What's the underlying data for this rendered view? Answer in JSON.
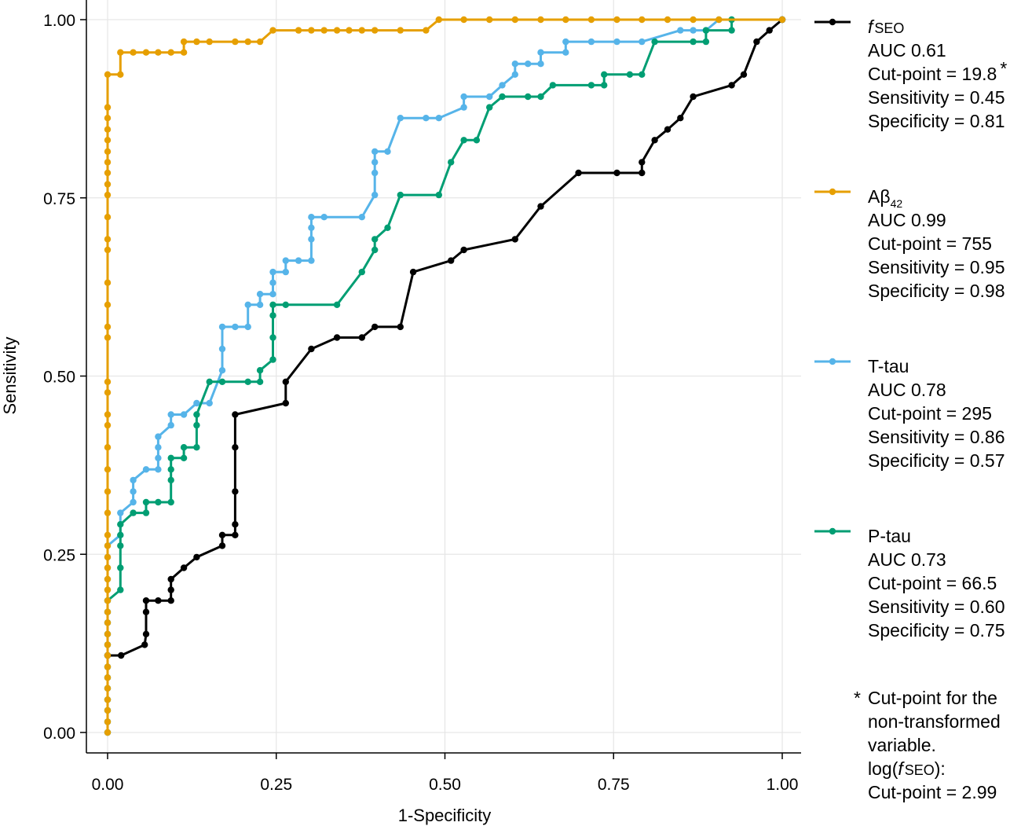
{
  "chart_data": {
    "type": "line",
    "title": "",
    "xlabel": "1-Specificity",
    "ylabel": "Sensitivity",
    "xlim": [
      0,
      1
    ],
    "ylim": [
      0,
      1
    ],
    "grid": true,
    "legend_position": "right",
    "x_ticks": [
      "0.00",
      "0.25",
      "0.50",
      "0.75",
      "1.00"
    ],
    "y_ticks": [
      "0.00",
      "0.25",
      "0.50",
      "0.75",
      "1.00"
    ],
    "series": [
      {
        "name": "fSEO",
        "name_italic": "f",
        "name_rest": "SEO",
        "color": "#000000",
        "legend_lines": [
          "AUC 0.61",
          "Cut-point = 19.8",
          "Sensitivity  = 0.45",
          "Specificity = 0.81"
        ],
        "cut_point_marker": "*",
        "points": [
          [
            0,
            0.108
          ],
          [
            0.02,
            0.108
          ],
          [
            0.055,
            0.123
          ],
          [
            0.057,
            0.138
          ],
          [
            0.057,
            0.169
          ],
          [
            0.057,
            0.185
          ],
          [
            0.075,
            0.185
          ],
          [
            0.094,
            0.185
          ],
          [
            0.094,
            0.2
          ],
          [
            0.094,
            0.215
          ],
          [
            0.113,
            0.231
          ],
          [
            0.132,
            0.246
          ],
          [
            0.17,
            0.262
          ],
          [
            0.17,
            0.277
          ],
          [
            0.189,
            0.277
          ],
          [
            0.189,
            0.292
          ],
          [
            0.189,
            0.338
          ],
          [
            0.189,
            0.4
          ],
          [
            0.189,
            0.446
          ],
          [
            0.264,
            0.462
          ],
          [
            0.264,
            0.492
          ],
          [
            0.302,
            0.538
          ],
          [
            0.34,
            0.554
          ],
          [
            0.377,
            0.554
          ],
          [
            0.396,
            0.569
          ],
          [
            0.434,
            0.569
          ],
          [
            0.453,
            0.646
          ],
          [
            0.509,
            0.662
          ],
          [
            0.528,
            0.677
          ],
          [
            0.604,
            0.692
          ],
          [
            0.642,
            0.738
          ],
          [
            0.698,
            0.785
          ],
          [
            0.755,
            0.785
          ],
          [
            0.792,
            0.785
          ],
          [
            0.792,
            0.8
          ],
          [
            0.811,
            0.831
          ],
          [
            0.83,
            0.846
          ],
          [
            0.849,
            0.862
          ],
          [
            0.868,
            0.892
          ],
          [
            0.925,
            0.908
          ],
          [
            0.943,
            0.923
          ],
          [
            0.962,
            0.969
          ],
          [
            0.981,
            0.985
          ],
          [
            1,
            1
          ]
        ]
      },
      {
        "name": "Aβ42",
        "name_main": "Aβ",
        "name_sub": "42",
        "color": "#E69F00",
        "legend_lines": [
          "AUC 0.99",
          "Cut-point = 755",
          "Sensitivity = 0.95",
          "Specificity = 0.98"
        ],
        "points": [
          [
            0,
            0
          ],
          [
            0,
            0.015
          ],
          [
            0,
            0.031
          ],
          [
            0,
            0.046
          ],
          [
            0,
            0.062
          ],
          [
            0,
            0.077
          ],
          [
            0,
            0.092
          ],
          [
            0,
            0.108
          ],
          [
            0,
            0.123
          ],
          [
            0,
            0.138
          ],
          [
            0,
            0.154
          ],
          [
            0,
            0.169
          ],
          [
            0,
            0.185
          ],
          [
            0,
            0.2
          ],
          [
            0,
            0.215
          ],
          [
            0,
            0.231
          ],
          [
            0,
            0.246
          ],
          [
            0,
            0.262
          ],
          [
            0,
            0.277
          ],
          [
            0,
            0.308
          ],
          [
            0,
            0.338
          ],
          [
            0,
            0.369
          ],
          [
            0,
            0.4
          ],
          [
            0,
            0.431
          ],
          [
            0,
            0.446
          ],
          [
            0,
            0.477
          ],
          [
            0,
            0.492
          ],
          [
            0,
            0.554
          ],
          [
            0,
            0.569
          ],
          [
            0,
            0.6
          ],
          [
            0,
            0.631
          ],
          [
            0,
            0.677
          ],
          [
            0,
            0.692
          ],
          [
            0,
            0.723
          ],
          [
            0,
            0.754
          ],
          [
            0,
            0.769
          ],
          [
            0,
            0.785
          ],
          [
            0,
            0.8
          ],
          [
            0,
            0.815
          ],
          [
            0,
            0.831
          ],
          [
            0,
            0.846
          ],
          [
            0,
            0.862
          ],
          [
            0,
            0.877
          ],
          [
            0,
            0.923
          ],
          [
            0.019,
            0.923
          ],
          [
            0.019,
            0.954
          ],
          [
            0.038,
            0.954
          ],
          [
            0.057,
            0.954
          ],
          [
            0.075,
            0.954
          ],
          [
            0.094,
            0.954
          ],
          [
            0.113,
            0.954
          ],
          [
            0.113,
            0.969
          ],
          [
            0.132,
            0.969
          ],
          [
            0.151,
            0.969
          ],
          [
            0.189,
            0.969
          ],
          [
            0.208,
            0.969
          ],
          [
            0.226,
            0.969
          ],
          [
            0.245,
            0.985
          ],
          [
            0.283,
            0.985
          ],
          [
            0.302,
            0.985
          ],
          [
            0.321,
            0.985
          ],
          [
            0.34,
            0.985
          ],
          [
            0.358,
            0.985
          ],
          [
            0.377,
            0.985
          ],
          [
            0.396,
            0.985
          ],
          [
            0.434,
            0.985
          ],
          [
            0.472,
            0.985
          ],
          [
            0.491,
            1
          ],
          [
            0.528,
            1
          ],
          [
            0.566,
            1
          ],
          [
            0.604,
            1
          ],
          [
            0.642,
            1
          ],
          [
            0.679,
            1
          ],
          [
            0.717,
            1
          ],
          [
            0.755,
            1
          ],
          [
            0.792,
            1
          ],
          [
            0.83,
            1
          ],
          [
            0.868,
            1
          ],
          [
            0.906,
            1
          ],
          [
            1,
            1
          ]
        ]
      },
      {
        "name": "T-tau",
        "color": "#56B4E9",
        "legend_lines": [
          "AUC 0.78",
          "Cut-point = 295",
          "Sensitivity = 0.86",
          "Specificity = 0.57"
        ],
        "points": [
          [
            0,
            0
          ],
          [
            0,
            0.015
          ],
          [
            0,
            0.031
          ],
          [
            0,
            0.046
          ],
          [
            0,
            0.062
          ],
          [
            0,
            0.077
          ],
          [
            0,
            0.092
          ],
          [
            0,
            0.108
          ],
          [
            0,
            0.123
          ],
          [
            0,
            0.138
          ],
          [
            0,
            0.154
          ],
          [
            0,
            0.169
          ],
          [
            0,
            0.185
          ],
          [
            0,
            0.2
          ],
          [
            0,
            0.215
          ],
          [
            0,
            0.231
          ],
          [
            0,
            0.246
          ],
          [
            0,
            0.262
          ],
          [
            0.019,
            0.277
          ],
          [
            0.019,
            0.308
          ],
          [
            0.038,
            0.323
          ],
          [
            0.038,
            0.338
          ],
          [
            0.038,
            0.354
          ],
          [
            0.057,
            0.369
          ],
          [
            0.075,
            0.369
          ],
          [
            0.075,
            0.385
          ],
          [
            0.075,
            0.4
          ],
          [
            0.075,
            0.415
          ],
          [
            0.094,
            0.431
          ],
          [
            0.094,
            0.446
          ],
          [
            0.113,
            0.446
          ],
          [
            0.132,
            0.462
          ],
          [
            0.151,
            0.462
          ],
          [
            0.17,
            0.508
          ],
          [
            0.17,
            0.538
          ],
          [
            0.17,
            0.569
          ],
          [
            0.189,
            0.569
          ],
          [
            0.208,
            0.569
          ],
          [
            0.208,
            0.6
          ],
          [
            0.226,
            0.6
          ],
          [
            0.226,
            0.615
          ],
          [
            0.245,
            0.615
          ],
          [
            0.245,
            0.631
          ],
          [
            0.245,
            0.646
          ],
          [
            0.264,
            0.646
          ],
          [
            0.264,
            0.662
          ],
          [
            0.283,
            0.662
          ],
          [
            0.302,
            0.662
          ],
          [
            0.302,
            0.692
          ],
          [
            0.302,
            0.708
          ],
          [
            0.302,
            0.723
          ],
          [
            0.321,
            0.723
          ],
          [
            0.377,
            0.723
          ],
          [
            0.396,
            0.754
          ],
          [
            0.396,
            0.785
          ],
          [
            0.396,
            0.8
          ],
          [
            0.396,
            0.815
          ],
          [
            0.415,
            0.815
          ],
          [
            0.434,
            0.862
          ],
          [
            0.472,
            0.862
          ],
          [
            0.491,
            0.862
          ],
          [
            0.528,
            0.877
          ],
          [
            0.528,
            0.892
          ],
          [
            0.566,
            0.892
          ],
          [
            0.585,
            0.908
          ],
          [
            0.604,
            0.923
          ],
          [
            0.604,
            0.938
          ],
          [
            0.623,
            0.938
          ],
          [
            0.642,
            0.938
          ],
          [
            0.642,
            0.954
          ],
          [
            0.679,
            0.954
          ],
          [
            0.679,
            0.969
          ],
          [
            0.717,
            0.969
          ],
          [
            0.755,
            0.969
          ],
          [
            0.792,
            0.969
          ],
          [
            0.849,
            0.985
          ],
          [
            0.868,
            0.985
          ],
          [
            0.887,
            0.985
          ],
          [
            0.906,
            1
          ],
          [
            0.925,
            1
          ],
          [
            1,
            1
          ]
        ]
      },
      {
        "name": "P-tau",
        "color": "#009E73",
        "legend_lines": [
          "AUC 0.73",
          "Cut-point = 66.5",
          "Sensitivity = 0.60",
          "Specificity = 0.75"
        ],
        "points": [
          [
            0,
            0
          ],
          [
            0,
            0.015
          ],
          [
            0,
            0.031
          ],
          [
            0,
            0.046
          ],
          [
            0,
            0.062
          ],
          [
            0,
            0.077
          ],
          [
            0,
            0.092
          ],
          [
            0,
            0.108
          ],
          [
            0,
            0.123
          ],
          [
            0,
            0.138
          ],
          [
            0,
            0.154
          ],
          [
            0,
            0.169
          ],
          [
            0,
            0.185
          ],
          [
            0.019,
            0.2
          ],
          [
            0.019,
            0.231
          ],
          [
            0.019,
            0.262
          ],
          [
            0.019,
            0.277
          ],
          [
            0.019,
            0.292
          ],
          [
            0.038,
            0.308
          ],
          [
            0.057,
            0.308
          ],
          [
            0.057,
            0.323
          ],
          [
            0.075,
            0.323
          ],
          [
            0.094,
            0.323
          ],
          [
            0.094,
            0.354
          ],
          [
            0.094,
            0.369
          ],
          [
            0.094,
            0.385
          ],
          [
            0.113,
            0.385
          ],
          [
            0.113,
            0.4
          ],
          [
            0.132,
            0.4
          ],
          [
            0.132,
            0.431
          ],
          [
            0.132,
            0.446
          ],
          [
            0.151,
            0.492
          ],
          [
            0.17,
            0.492
          ],
          [
            0.208,
            0.492
          ],
          [
            0.226,
            0.492
          ],
          [
            0.226,
            0.508
          ],
          [
            0.245,
            0.523
          ],
          [
            0.245,
            0.554
          ],
          [
            0.245,
            0.585
          ],
          [
            0.245,
            0.6
          ],
          [
            0.264,
            0.6
          ],
          [
            0.34,
            0.6
          ],
          [
            0.377,
            0.646
          ],
          [
            0.396,
            0.677
          ],
          [
            0.396,
            0.692
          ],
          [
            0.415,
            0.708
          ],
          [
            0.434,
            0.754
          ],
          [
            0.491,
            0.754
          ],
          [
            0.509,
            0.8
          ],
          [
            0.528,
            0.831
          ],
          [
            0.547,
            0.831
          ],
          [
            0.566,
            0.877
          ],
          [
            0.585,
            0.892
          ],
          [
            0.623,
            0.892
          ],
          [
            0.642,
            0.892
          ],
          [
            0.66,
            0.908
          ],
          [
            0.717,
            0.908
          ],
          [
            0.736,
            0.908
          ],
          [
            0.736,
            0.923
          ],
          [
            0.774,
            0.923
          ],
          [
            0.792,
            0.923
          ],
          [
            0.811,
            0.969
          ],
          [
            0.868,
            0.969
          ],
          [
            0.887,
            0.969
          ],
          [
            0.887,
            0.985
          ],
          [
            0.925,
            0.985
          ],
          [
            0.925,
            1
          ],
          [
            1,
            1
          ]
        ]
      }
    ],
    "footnote": {
      "marker": "*",
      "lines": [
        "Cut-point for the",
        "non-transformed",
        "variable."
      ],
      "log_label_prefix": "log(",
      "log_label_italic": "f",
      "log_label_smallcaps": "SEO",
      "log_label_suffix": "):",
      "log_cut_point": "Cut-point = 2.99"
    }
  }
}
